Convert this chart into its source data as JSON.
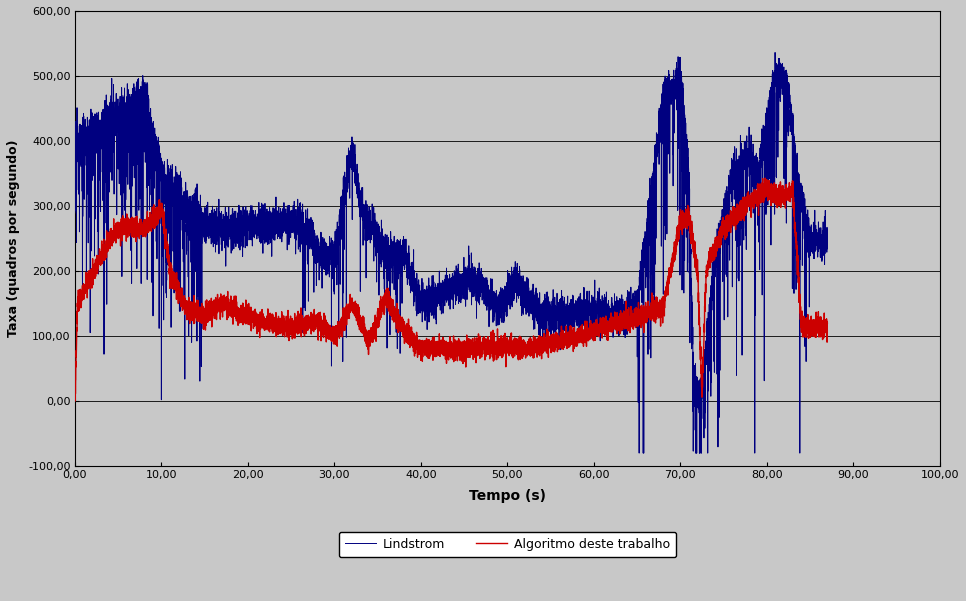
{
  "title": "",
  "xlabel": "Tempo (s)",
  "ylabel": "Taxa (quadros por segundo)",
  "xlim": [
    0,
    100
  ],
  "ylim": [
    -100,
    600
  ],
  "yticks": [
    -100,
    0,
    100,
    200,
    300,
    400,
    500,
    600
  ],
  "xticks": [
    0,
    10,
    20,
    30,
    40,
    50,
    60,
    70,
    80,
    90,
    100
  ],
  "blue_color": "#000080",
  "red_color": "#CC0000",
  "bg_color": "#C8C8C8",
  "fig_color": "#C8C8C8",
  "legend_entries": [
    "Lindstrom",
    "Algoritmo deste trabalho"
  ],
  "linewidth_blue": 0.7,
  "linewidth_red": 1.0
}
